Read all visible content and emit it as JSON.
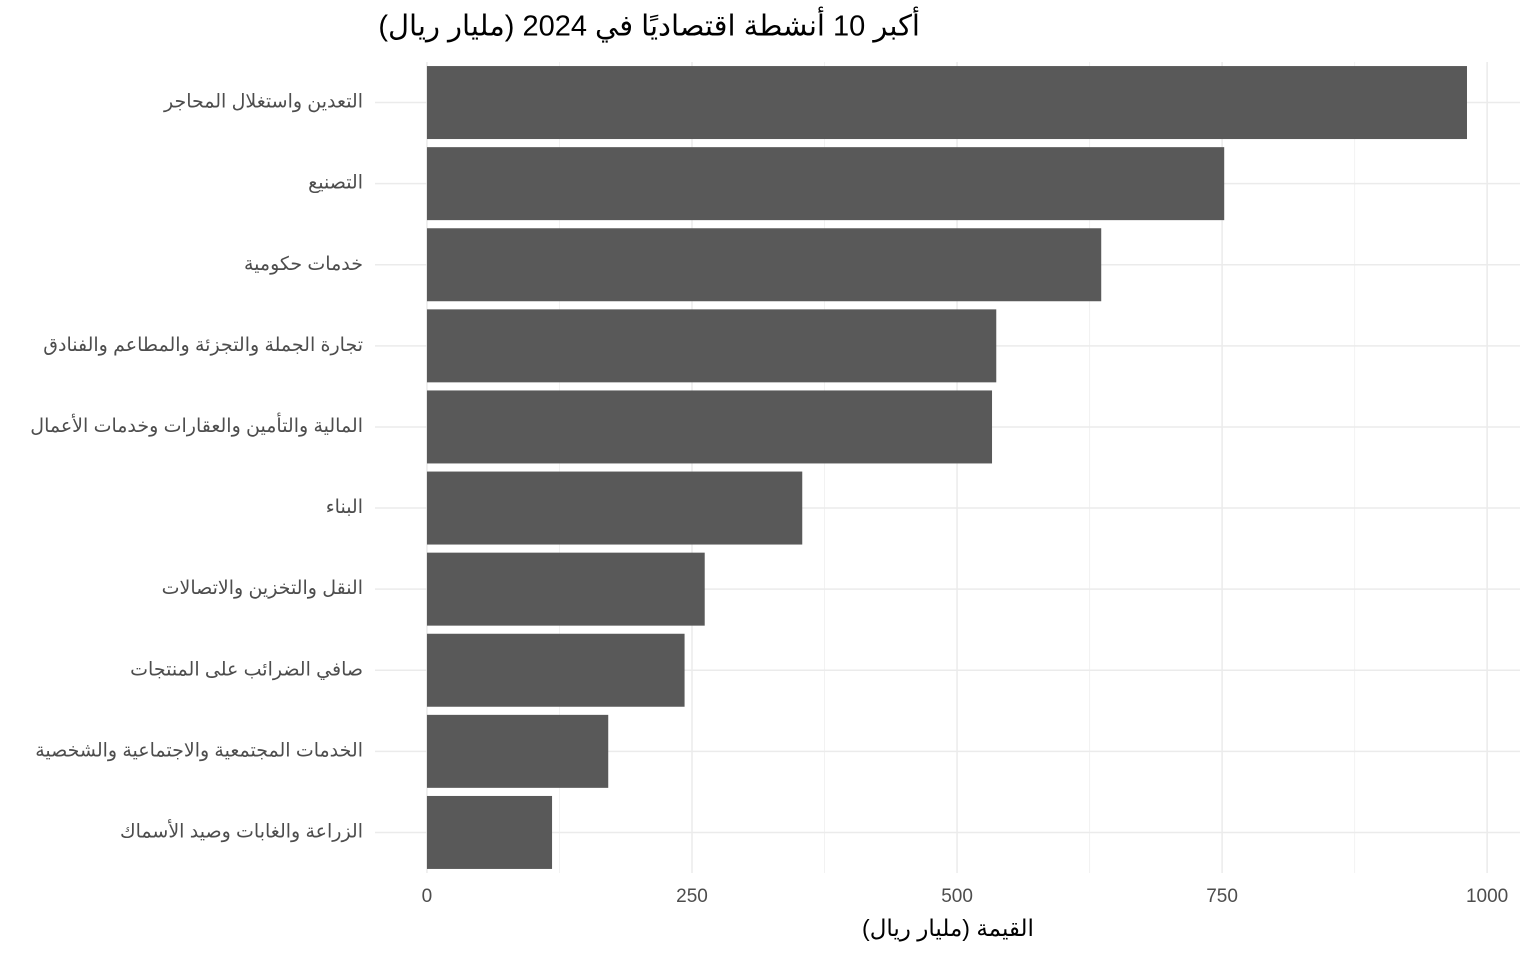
{
  "chart_data": {
    "type": "bar",
    "orientation": "horizontal",
    "title": "أكبر 10 أنشطة اقتصاديًا في 2024 (مليار ريال)",
    "x_label": "القيمة (مليار ريال)",
    "categories": [
      "التعدين واستغلال المحاجر",
      "التصنيع",
      "خدمات حكومية",
      "تجارة الجملة والتجزئة والمطاعم والفنادق",
      "المالية والتأمين والعقارات وخدمات الأعمال",
      "البناء",
      "النقل والتخزين والاتصالات",
      "صافي الضرائب على المنتجات",
      "الخدمات المجتمعية والاجتماعية والشخصية",
      "الزراعة والغابات وصيد الأسماك"
    ],
    "values": [
      981,
      752,
      636,
      537,
      533,
      354,
      262,
      243,
      171,
      118
    ],
    "color": "#595959",
    "xlim": [
      -49,
      1031
    ],
    "xticks": [
      0,
      250,
      500,
      750,
      1000
    ],
    "grid": true
  }
}
